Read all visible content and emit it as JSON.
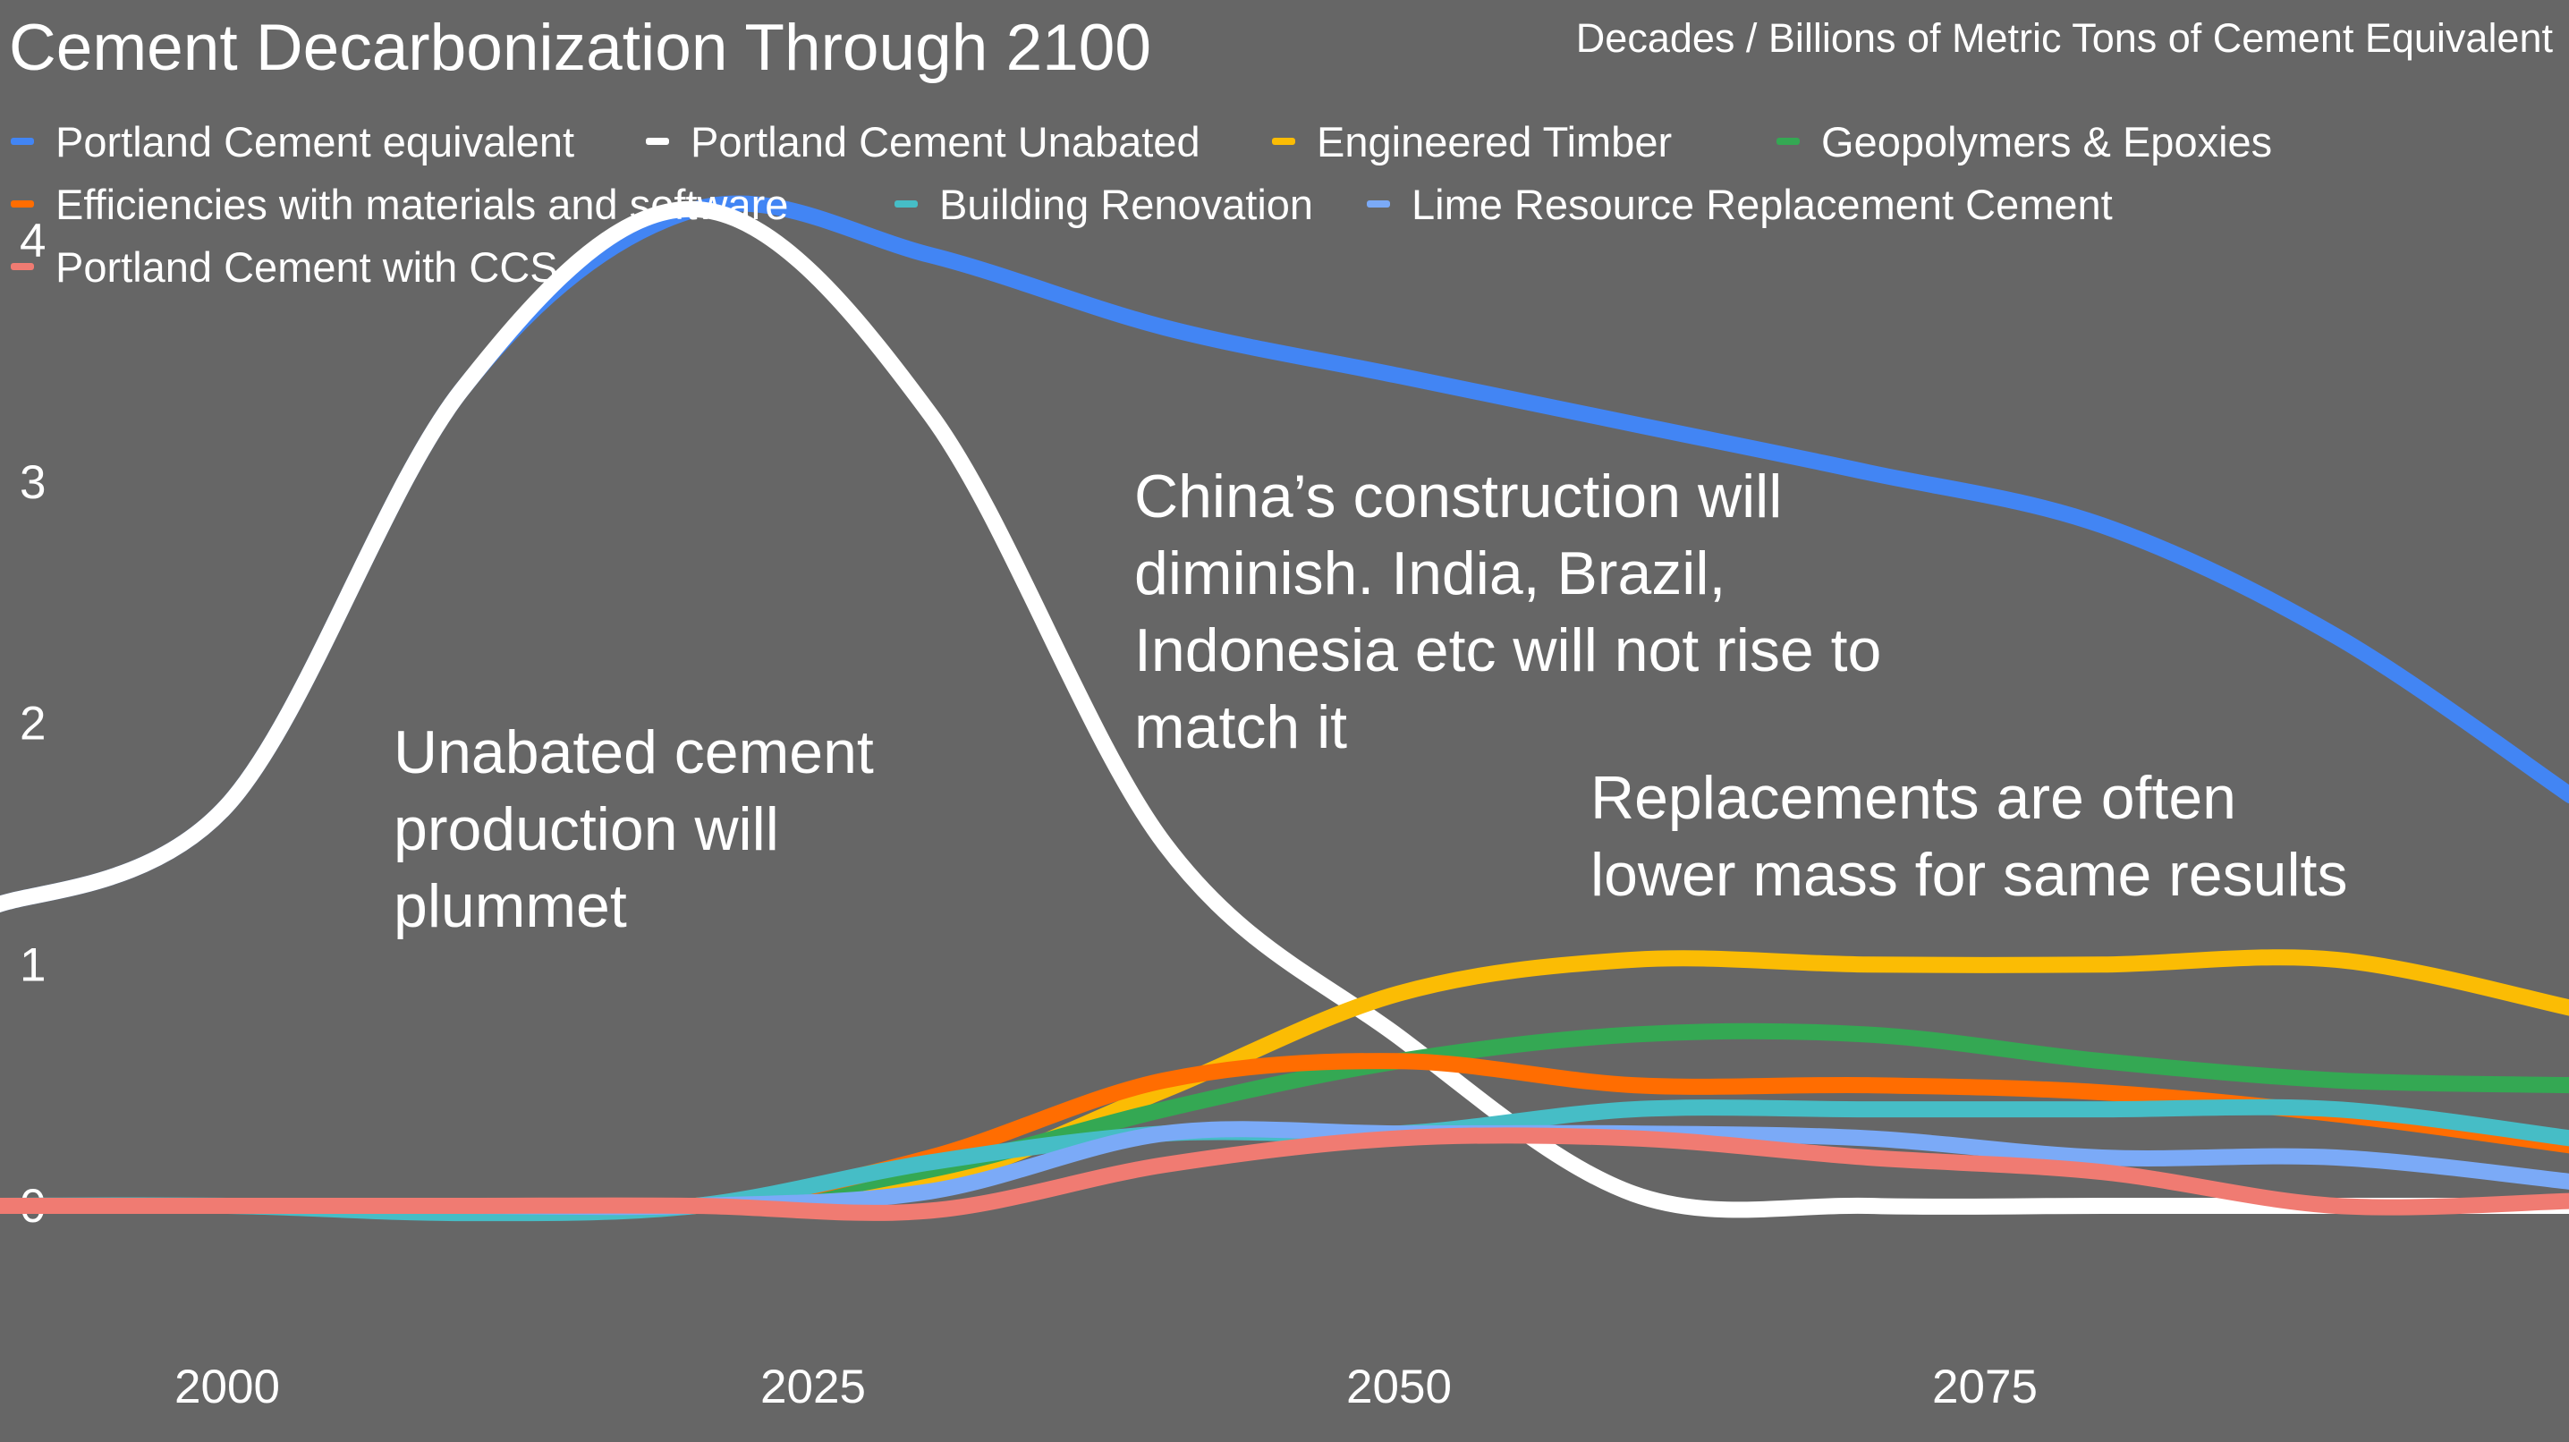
{
  "chart_data": {
    "type": "line",
    "title": "Cement Decarbonization Through 2100",
    "subtitle": "Decades / Billions of Metric Tons of Cement Equivalent",
    "xlabel": "Decades",
    "ylabel": "Billions of Metric Tons of Cement Equivalent",
    "xlim": [
      1990,
      2100
    ],
    "ylim": [
      -0.6,
      4.2
    ],
    "x_ticks": [
      "2000",
      "2025",
      "2050",
      "2075"
    ],
    "x_tick_values": [
      2000,
      2025,
      2050,
      2075
    ],
    "y_ticks": [
      "0",
      "1",
      "2",
      "3",
      "4"
    ],
    "y_tick_values": [
      0,
      1,
      2,
      3,
      4
    ],
    "grid": false,
    "legend_position": "top-left",
    "series": [
      {
        "name": "Portland Cement equivalent",
        "color": "#4285f4",
        "x": [
          1990,
          2000,
          2010,
          2020,
          2030,
          2040,
          2050,
          2060,
          2070,
          2080,
          2090,
          2100
        ],
        "values": [
          1.24,
          1.66,
          3.38,
          4.13,
          3.94,
          3.64,
          3.44,
          3.24,
          3.04,
          2.82,
          2.36,
          1.7
        ]
      },
      {
        "name": "Portland Cement Unabated",
        "color": "#ffffff",
        "x": [
          1990,
          2000,
          2010,
          2020,
          2030,
          2040,
          2050,
          2060,
          2070,
          2080,
          2090,
          2100
        ],
        "values": [
          1.24,
          1.66,
          3.38,
          4.13,
          3.28,
          1.5,
          0.7,
          0.05,
          0.0,
          0.0,
          0.0,
          0.0
        ]
      },
      {
        "name": "Engineered Timber",
        "color": "#fbbc04",
        "x": [
          1990,
          2000,
          2010,
          2020,
          2030,
          2040,
          2050,
          2060,
          2070,
          2080,
          2090,
          2100
        ],
        "values": [
          0,
          0,
          0,
          0,
          0.1,
          0.48,
          0.88,
          1.02,
          1.0,
          1.0,
          1.02,
          0.82
        ]
      },
      {
        "name": "Geopolymers & Epoxies",
        "color": "#34a853",
        "x": [
          1990,
          2000,
          2010,
          2020,
          2030,
          2040,
          2050,
          2060,
          2070,
          2080,
          2090,
          2100
        ],
        "values": [
          0,
          0,
          0,
          0,
          0.15,
          0.4,
          0.6,
          0.71,
          0.71,
          0.6,
          0.52,
          0.5
        ]
      },
      {
        "name": "Efficiencies with materials and software",
        "color": "#ff6d01",
        "x": [
          1990,
          2000,
          2010,
          2020,
          2030,
          2040,
          2050,
          2060,
          2070,
          2080,
          2090,
          2100
        ],
        "values": [
          0,
          0,
          0,
          0,
          0.2,
          0.52,
          0.6,
          0.5,
          0.5,
          0.47,
          0.38,
          0.25
        ]
      },
      {
        "name": "Building Renovation",
        "color": "#46bdc6",
        "x": [
          1990,
          2000,
          2010,
          2020,
          2030,
          2040,
          2050,
          2060,
          2070,
          2080,
          2090,
          2100
        ],
        "values": [
          0,
          0,
          -0.03,
          0,
          0.18,
          0.3,
          0.3,
          0.4,
          0.4,
          0.4,
          0.4,
          0.28
        ]
      },
      {
        "name": "Lime Resource Replacement Cement",
        "color": "#7baaf7",
        "x": [
          1990,
          2000,
          2010,
          2020,
          2030,
          2040,
          2050,
          2060,
          2070,
          2080,
          2090,
          2100
        ],
        "values": [
          0,
          0,
          0,
          0,
          0.06,
          0.3,
          0.3,
          0.3,
          0.28,
          0.2,
          0.2,
          0.1
        ]
      },
      {
        "name": "Portland Cement with CCS",
        "color": "#f07b72",
        "x": [
          1990,
          2000,
          2010,
          2020,
          2030,
          2040,
          2050,
          2060,
          2070,
          2080,
          2090,
          2100
        ],
        "values": [
          0,
          0,
          0,
          0,
          -0.02,
          0.17,
          0.28,
          0.28,
          0.2,
          0.14,
          0.0,
          0.02
        ]
      }
    ],
    "annotations": [
      {
        "text": [
          "Unabated cement",
          "production will",
          "plummet"
        ]
      },
      {
        "text": [
          "China’s construction will",
          "diminish. India, Brazil,",
          "Indonesia etc will not rise to",
          "match it"
        ]
      },
      {
        "text": [
          "Replacements are often",
          "lower mass for same results"
        ]
      }
    ]
  }
}
